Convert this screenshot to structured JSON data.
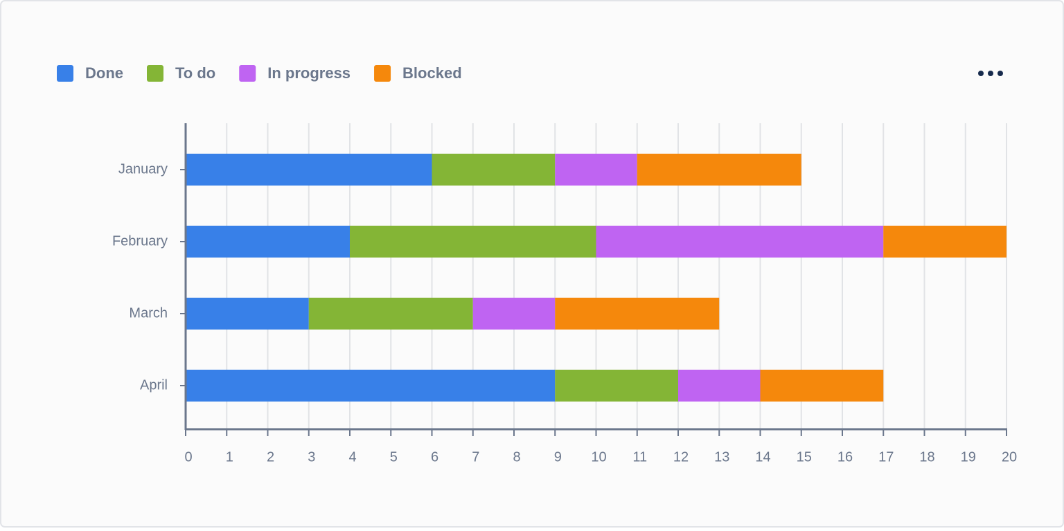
{
  "chart_data": {
    "type": "stacked-bar-horizontal",
    "categories": [
      "January",
      "February",
      "March",
      "April"
    ],
    "series": [
      {
        "name": "Done",
        "color": "#3880e8",
        "values": [
          6,
          4,
          3,
          9
        ]
      },
      {
        "name": "To do",
        "color": "#84b536",
        "values": [
          3,
          6,
          4,
          3
        ]
      },
      {
        "name": "In progress",
        "color": "#bf64f2",
        "values": [
          2,
          7,
          2,
          2
        ]
      },
      {
        "name": "Blocked",
        "color": "#f5880c",
        "values": [
          4,
          3,
          4,
          3
        ]
      }
    ],
    "xlim": [
      0,
      20
    ],
    "xticks": [
      0,
      1,
      2,
      3,
      4,
      5,
      6,
      7,
      8,
      9,
      10,
      11,
      12,
      13,
      14,
      15,
      16,
      17,
      18,
      19,
      20
    ],
    "grid": true,
    "legend": "top"
  }
}
